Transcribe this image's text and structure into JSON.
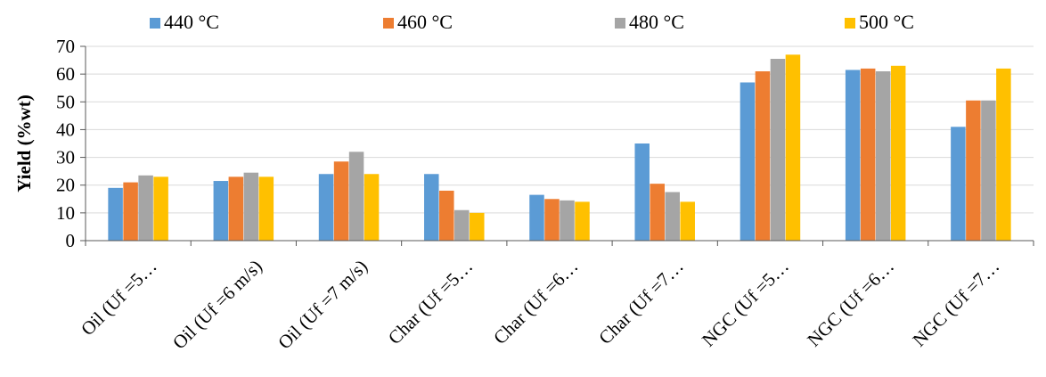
{
  "chart_data": {
    "type": "bar",
    "ylabel": "Yield (%wt)",
    "xlabel": "",
    "ylim": [
      0,
      70
    ],
    "yticks": [
      0,
      10,
      20,
      30,
      40,
      50,
      60,
      70
    ],
    "grid": true,
    "legend_position": "top",
    "categories": [
      "Oil  (Uf =5…",
      "Oil (Uf =6 m/s)",
      "Oil (Uf =7 m/s)",
      "Char (Uf =5…",
      "Char (Uf =6…",
      "Char (Uf =7…",
      "NGC (Uf =5…",
      "NGC (Uf =6…",
      "NGC (Uf =7…"
    ],
    "series": [
      {
        "name": "440 °C",
        "color": "#5B9BD5",
        "values": [
          19,
          21.5,
          24,
          24,
          16.5,
          35,
          57,
          61.5,
          41
        ]
      },
      {
        "name": "460 °C",
        "color": "#ED7D31",
        "values": [
          21,
          23,
          28.5,
          18,
          15,
          20.5,
          61,
          62,
          50.5
        ]
      },
      {
        "name": "480 °C",
        "color": "#A5A5A5",
        "values": [
          23.5,
          24.5,
          32,
          11,
          14.5,
          17.5,
          65.5,
          61,
          50.5
        ]
      },
      {
        "name": "500 °C",
        "color": "#FFC000",
        "values": [
          23,
          23,
          24,
          10,
          14,
          14,
          67,
          63,
          62
        ]
      }
    ]
  }
}
